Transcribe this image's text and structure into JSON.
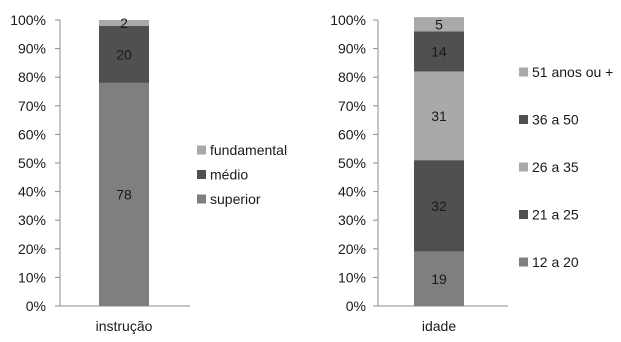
{
  "chart_data": [
    {
      "type": "bar",
      "stacked": true,
      "categories": [
        "instrução"
      ],
      "ylim": [
        0,
        100
      ],
      "yticks": [
        "0%",
        "10%",
        "20%",
        "30%",
        "40%",
        "50%",
        "60%",
        "70%",
        "80%",
        "90%",
        "100%"
      ],
      "legend_position": "right",
      "series": [
        {
          "name": "superior",
          "values": [
            78
          ],
          "color": "#7f7f7f"
        },
        {
          "name": "médio",
          "values": [
            20
          ],
          "color": "#505050"
        },
        {
          "name": "fundamental",
          "values": [
            2
          ],
          "color": "#a9a9a9"
        }
      ],
      "legend_order": [
        "fundamental",
        "médio",
        "superior"
      ]
    },
    {
      "type": "bar",
      "stacked": true,
      "categories": [
        "idade"
      ],
      "ylim": [
        0,
        100
      ],
      "yticks": [
        "0%",
        "10%",
        "20%",
        "30%",
        "40%",
        "50%",
        "60%",
        "70%",
        "80%",
        "90%",
        "100%"
      ],
      "legend_position": "right",
      "series": [
        {
          "name": "12 a 20",
          "values": [
            19
          ],
          "color": "#7f7f7f"
        },
        {
          "name": "21 a 25",
          "values": [
            32
          ],
          "color": "#505050"
        },
        {
          "name": "26 a 35",
          "values": [
            31
          ],
          "color": "#a9a9a9"
        },
        {
          "name": "36 a 50",
          "values": [
            14
          ],
          "color": "#505050"
        },
        {
          "name": "51 anos ou +",
          "values": [
            5
          ],
          "color": "#a9a9a9"
        }
      ],
      "legend_order": [
        "51 anos ou +",
        "36 a 50",
        "26 a 35",
        "21 a 25",
        "12 a 20"
      ]
    }
  ]
}
